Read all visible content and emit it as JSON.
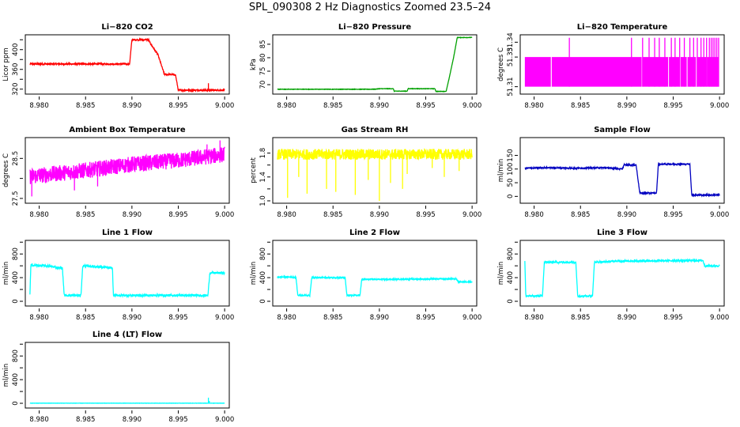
{
  "title": "SPL_090308  2 Hz Diagnostics Zoomed 23.5–24",
  "chart_data": [
    {
      "name": "co2",
      "type": "line",
      "title": "Li−820 CO2",
      "ylabel": "Licor ppm",
      "xlabel": "",
      "color": "#ff0000",
      "xlim": [
        8.9785,
        9.0005
      ],
      "ylim": [
        310,
        430
      ],
      "xticks": [
        8.98,
        8.985,
        8.99,
        8.995,
        9.0
      ],
      "xtick_labels": [
        "8.980",
        "8.985",
        "8.990",
        "8.995",
        "9.000"
      ],
      "yticks": [
        320,
        360,
        400
      ],
      "ytick_labels": [
        "320",
        "360",
        "400"
      ],
      "extra_yticks": [
        340,
        380,
        420
      ],
      "noise": 1.5,
      "segments": [
        [
          8.979,
          371
        ],
        [
          8.98975,
          371
        ],
        [
          8.99,
          420
        ],
        [
          8.9918,
          420
        ],
        [
          8.992,
          412
        ],
        [
          8.9928,
          390
        ],
        [
          8.9935,
          350
        ],
        [
          8.9947,
          349
        ],
        [
          8.995,
          318
        ],
        [
          9.0,
          318
        ]
      ],
      "spikes": [
        [
          8.99825,
          332
        ]
      ]
    },
    {
      "name": "pressure",
      "type": "line",
      "title": "Li−820 Pressure",
      "ylabel": "kPa",
      "xlabel": "",
      "color": "#00a000",
      "xlim": [
        8.9785,
        9.0005
      ],
      "ylim": [
        66.5,
        88.5
      ],
      "xticks": [
        8.98,
        8.985,
        8.99,
        8.995,
        9.0
      ],
      "xtick_labels": [
        "8.980",
        "8.985",
        "8.990",
        "8.995",
        "9.000"
      ],
      "yticks": [
        70,
        75,
        80,
        85
      ],
      "ytick_labels": [
        "70",
        "75",
        "80",
        "85"
      ],
      "extra_yticks": [],
      "noise": 0.08,
      "segments": [
        [
          8.979,
          68.3
        ],
        [
          8.9895,
          68.3
        ],
        [
          8.99,
          68.5
        ],
        [
          8.9915,
          68.5
        ],
        [
          8.9916,
          67.6
        ],
        [
          8.993,
          67.6
        ],
        [
          8.9931,
          68.5
        ],
        [
          8.996,
          68.5
        ],
        [
          8.9961,
          67.5
        ],
        [
          8.9972,
          67.5
        ],
        [
          8.9975,
          72
        ],
        [
          8.998,
          80
        ],
        [
          8.9984,
          87.5
        ],
        [
          9.0,
          87.5
        ]
      ],
      "spikes": []
    },
    {
      "name": "temperature",
      "type": "bands",
      "title": "Li−820 Temperature",
      "ylabel": "degrees C",
      "xlabel": "",
      "color": "#ff00ff",
      "xlim": [
        8.9785,
        9.0005
      ],
      "ylim": [
        51.305,
        51.345
      ],
      "xticks": [
        8.98,
        8.985,
        8.99,
        8.995,
        9.0
      ],
      "xtick_labels": [
        "8.980",
        "8.985",
        "8.990",
        "8.995",
        "9.000"
      ],
      "yticks": [
        51.31,
        51.33,
        51.34
      ],
      "ytick_labels": [
        "51.31",
        "51.33",
        "51.34"
      ],
      "extra_yticks": [],
      "band_low": 51.31,
      "band_high": 51.33,
      "spike_high": 51.343,
      "band_ranges": [
        [
          8.979,
          8.9818
        ],
        [
          8.9819,
          8.9916
        ],
        [
          8.9917,
          8.9957
        ],
        [
          8.9958,
          8.9999
        ]
      ],
      "spikes_up": [
        8.9838,
        8.9905,
        8.9917,
        8.9924,
        8.993,
        8.9935,
        8.9941,
        8.9948,
        8.9952,
        8.9957,
        8.9962,
        8.9968,
        8.9972,
        8.9976,
        8.998,
        8.9983,
        8.9986,
        8.9989,
        8.9991,
        8.9993,
        8.9995,
        8.9997,
        8.9999
      ],
      "gaps": [
        8.9945,
        8.9965,
        8.9975,
        8.9986
      ]
    },
    {
      "name": "ambient",
      "type": "line",
      "title": "Ambient Box Temperature",
      "ylabel": "degrees C",
      "xlabel": "",
      "color": "#ff00ff",
      "xlim": [
        8.9785,
        9.0005
      ],
      "ylim": [
        27.38,
        29.02
      ],
      "xticks": [
        8.98,
        8.985,
        8.99,
        8.995,
        9.0
      ],
      "xtick_labels": [
        "8.980",
        "8.985",
        "8.990",
        "8.995",
        "9.000"
      ],
      "yticks": [
        27.5,
        28.5
      ],
      "ytick_labels": [
        "27.5",
        "28.5"
      ],
      "extra_yticks": [
        28.0
      ],
      "noise": 0.2,
      "segments": [
        [
          8.979,
          28.05
        ],
        [
          8.985,
          28.2
        ],
        [
          8.99,
          28.35
        ],
        [
          8.995,
          28.45
        ],
        [
          9.0,
          28.6
        ]
      ],
      "spikes": [
        [
          8.9792,
          27.55
        ],
        [
          8.9838,
          27.7
        ],
        [
          8.9863,
          27.8
        ],
        [
          8.9995,
          28.95
        ],
        [
          8.9981,
          28.85
        ]
      ]
    },
    {
      "name": "rh",
      "type": "line",
      "title": "Gas Stream RH",
      "ylabel": "percent",
      "xlabel": "",
      "color": "#ffff00",
      "xlim": [
        8.9785,
        9.0005
      ],
      "ylim": [
        0.96,
        2.06
      ],
      "xticks": [
        8.98,
        8.985,
        8.99,
        8.995,
        9.0
      ],
      "xtick_labels": [
        "8.980",
        "8.985",
        "8.990",
        "8.995",
        "9.000"
      ],
      "yticks": [
        1.0,
        1.4,
        1.8
      ],
      "ytick_labels": [
        "1.0",
        "1.4",
        "1.8"
      ],
      "extra_yticks": [
        1.2,
        1.6
      ],
      "noise": 0.09,
      "segments": [
        [
          8.979,
          1.78
        ],
        [
          9.0,
          1.78
        ]
      ],
      "spikes": [
        [
          8.9801,
          1.05
        ],
        [
          8.9813,
          1.4
        ],
        [
          8.9822,
          1.12
        ],
        [
          8.9843,
          1.2
        ],
        [
          8.9853,
          1.15
        ],
        [
          8.9874,
          1.1
        ],
        [
          8.9888,
          1.35
        ],
        [
          8.99,
          1.0
        ],
        [
          8.9912,
          1.3
        ],
        [
          8.9925,
          1.2
        ],
        [
          8.993,
          1.45
        ],
        [
          8.9957,
          1.55
        ],
        [
          8.997,
          1.4
        ],
        [
          8.9986,
          1.5
        ]
      ]
    },
    {
      "name": "sample",
      "type": "line",
      "title": "Sample Flow",
      "ylabel": "ml/min",
      "xlabel": "",
      "color": "#0000c0",
      "xlim": [
        8.9785,
        9.0005
      ],
      "ylim": [
        -25,
        215
      ],
      "xticks": [
        8.98,
        8.985,
        8.99,
        8.995,
        9.0
      ],
      "xtick_labels": [
        "8.980",
        "8.985",
        "8.990",
        "8.995",
        "9.000"
      ],
      "yticks": [
        0,
        50,
        100,
        150
      ],
      "ytick_labels": [
        "0",
        "50",
        "100",
        "150"
      ],
      "extra_yticks": [],
      "noise": 2.5,
      "segments": [
        [
          8.979,
          103
        ],
        [
          8.9815,
          105
        ],
        [
          8.9845,
          103
        ],
        [
          8.9875,
          105
        ],
        [
          8.9895,
          100
        ],
        [
          8.9897,
          115
        ],
        [
          8.991,
          115
        ],
        [
          8.9914,
          12
        ],
        [
          8.9932,
          12
        ],
        [
          8.9934,
          118
        ],
        [
          8.9968,
          118
        ],
        [
          8.997,
          5
        ],
        [
          9.0,
          5
        ]
      ],
      "spikes": []
    },
    {
      "name": "line1",
      "type": "line",
      "title": "Line 1 Flow",
      "ylabel": "ml/min",
      "xlabel": "",
      "color": "#00ffff",
      "xlim": [
        8.9785,
        9.0005
      ],
      "ylim": [
        -80,
        1030
      ],
      "xticks": [
        8.98,
        8.985,
        8.99,
        8.995,
        9.0
      ],
      "xtick_labels": [
        "8.980",
        "8.985",
        "8.990",
        "8.995",
        "9.000"
      ],
      "yticks": [
        0,
        400,
        800
      ],
      "ytick_labels": [
        "0",
        "400",
        "800"
      ],
      "extra_yticks": [
        200,
        600,
        1000
      ],
      "noise": 18,
      "segments": [
        [
          8.979,
          120
        ],
        [
          8.9791,
          610
        ],
        [
          8.9808,
          600
        ],
        [
          8.9825,
          560
        ],
        [
          8.9827,
          100
        ],
        [
          8.9845,
          100
        ],
        [
          8.9847,
          600
        ],
        [
          8.9867,
          580
        ],
        [
          8.9879,
          560
        ],
        [
          8.988,
          100
        ],
        [
          8.9982,
          100
        ],
        [
          8.9984,
          480
        ],
        [
          9.0,
          480
        ]
      ],
      "spikes": []
    },
    {
      "name": "line2",
      "type": "line",
      "title": "Line 2 Flow",
      "ylabel": "ml/min",
      "xlabel": "",
      "color": "#00ffff",
      "xlim": [
        8.9785,
        9.0005
      ],
      "ylim": [
        -80,
        1030
      ],
      "xticks": [
        8.98,
        8.985,
        8.99,
        8.995,
        9.0
      ],
      "xtick_labels": [
        "8.980",
        "8.985",
        "8.990",
        "8.995",
        "9.000"
      ],
      "yticks": [
        0,
        400,
        800
      ],
      "ytick_labels": [
        "0",
        "400",
        "800"
      ],
      "extra_yticks": [
        200,
        600,
        1000
      ],
      "noise": 10,
      "segments": [
        [
          8.979,
          410
        ],
        [
          8.981,
          410
        ],
        [
          8.9812,
          100
        ],
        [
          8.9825,
          100
        ],
        [
          8.9827,
          400
        ],
        [
          8.9863,
          400
        ],
        [
          8.9865,
          100
        ],
        [
          8.9879,
          100
        ],
        [
          8.9881,
          370
        ],
        [
          8.9983,
          380
        ],
        [
          8.9985,
          330
        ],
        [
          9.0,
          330
        ]
      ],
      "spikes": []
    },
    {
      "name": "line3",
      "type": "line",
      "title": "Line 3 Flow",
      "ylabel": "ml/min",
      "xlabel": "",
      "color": "#00ffff",
      "xlim": [
        8.9785,
        9.0005
      ],
      "ylim": [
        -80,
        1030
      ],
      "xticks": [
        8.98,
        8.985,
        8.99,
        8.995,
        9.0
      ],
      "xtick_labels": [
        "8.980",
        "8.985",
        "8.990",
        "8.995",
        "9.000"
      ],
      "yticks": [
        0,
        400,
        800
      ],
      "ytick_labels": [
        "0",
        "400",
        "800"
      ],
      "extra_yticks": [
        200,
        600,
        1000
      ],
      "noise": 15,
      "segments": [
        [
          8.979,
          680
        ],
        [
          8.9791,
          90
        ],
        [
          8.9809,
          90
        ],
        [
          8.9811,
          660
        ],
        [
          8.9845,
          660
        ],
        [
          8.9847,
          90
        ],
        [
          8.9863,
          90
        ],
        [
          8.9865,
          660
        ],
        [
          8.989,
          680
        ],
        [
          8.9982,
          690
        ],
        [
          8.9984,
          600
        ],
        [
          9.0,
          600
        ]
      ],
      "spikes": []
    },
    {
      "name": "line4",
      "type": "line",
      "title": "Line 4 (LT) Flow",
      "ylabel": "ml/min",
      "xlabel": "",
      "color": "#00ffff",
      "xlim": [
        8.9785,
        9.0005
      ],
      "ylim": [
        -80,
        1030
      ],
      "xticks": [
        8.98,
        8.985,
        8.99,
        8.995,
        9.0
      ],
      "xtick_labels": [
        "8.980",
        "8.985",
        "8.990",
        "8.995",
        "9.000"
      ],
      "yticks": [
        0,
        400,
        800
      ],
      "ytick_labels": [
        "0",
        "400",
        "800"
      ],
      "extra_yticks": [
        200,
        600,
        1000
      ],
      "noise": 2,
      "segments": [
        [
          8.979,
          2
        ],
        [
          9.0,
          2
        ]
      ],
      "spikes": [
        [
          8.99825,
          95
        ],
        [
          8.99835,
          40
        ]
      ]
    }
  ]
}
